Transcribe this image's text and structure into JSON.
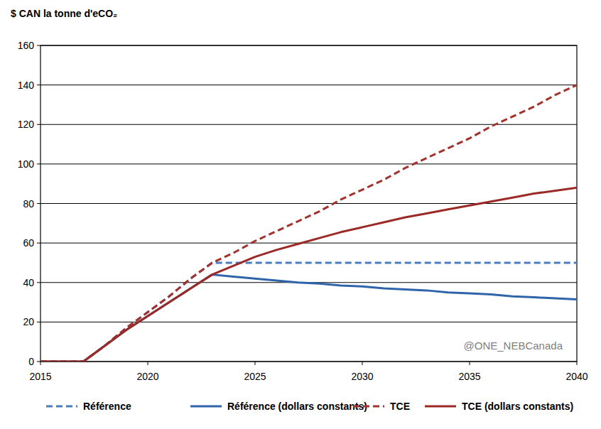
{
  "chart_data": {
    "type": "line",
    "title": "$ CAN la tonne d'eCO₂",
    "annotation": "@ONE_NEBCanada",
    "x": [
      2015,
      2016,
      2017,
      2018,
      2019,
      2020,
      2021,
      2022,
      2023,
      2024,
      2025,
      2026,
      2027,
      2028,
      2029,
      2030,
      2031,
      2032,
      2033,
      2034,
      2035,
      2036,
      2037,
      2038,
      2039,
      2040
    ],
    "xlim": [
      2015,
      2040
    ],
    "xticks": [
      2015,
      2020,
      2025,
      2030,
      2035,
      2040
    ],
    "ylim": [
      0,
      160
    ],
    "yticks": [
      0,
      20,
      40,
      60,
      80,
      100,
      120,
      140,
      160
    ],
    "grid": true,
    "legend": "bottom",
    "series": [
      {
        "name": "Référence",
        "color": "#4a7cc0",
        "line_style": "dashed",
        "values": [
          0,
          0,
          0,
          8,
          17,
          25,
          33,
          42,
          50,
          50,
          50,
          50,
          50,
          50,
          50,
          50,
          50,
          50,
          50,
          50,
          50,
          50,
          50,
          50,
          50,
          50
        ]
      },
      {
        "name": "Référence (dollars constants)",
        "color": "#2f64ab",
        "line_style": "solid",
        "values": [
          0,
          0,
          0,
          8,
          16,
          23,
          30,
          37,
          44,
          43,
          42,
          41,
          40,
          39.5,
          38.5,
          38,
          37,
          36.5,
          36,
          35,
          34.5,
          34,
          33,
          32.5,
          32,
          31.5
        ]
      },
      {
        "name": "TCE",
        "color": "#a3322d",
        "line_style": "dashed",
        "values": [
          0,
          0,
          0,
          8,
          17,
          25,
          33,
          42,
          50,
          55,
          61,
          66,
          71,
          76,
          82,
          87,
          92,
          98,
          103,
          108,
          113,
          119,
          124,
          129,
          135,
          140
        ]
      },
      {
        "name": "TCE (dollars constants)",
        "color": "#9b2a26",
        "line_style": "solid",
        "values": [
          0,
          0,
          0,
          8,
          16,
          23,
          30,
          37,
          44,
          48.5,
          53,
          56.5,
          59.5,
          62.5,
          65.5,
          68,
          70.5,
          73,
          75,
          77,
          79,
          81,
          83,
          85,
          86.5,
          88
        ]
      }
    ]
  }
}
